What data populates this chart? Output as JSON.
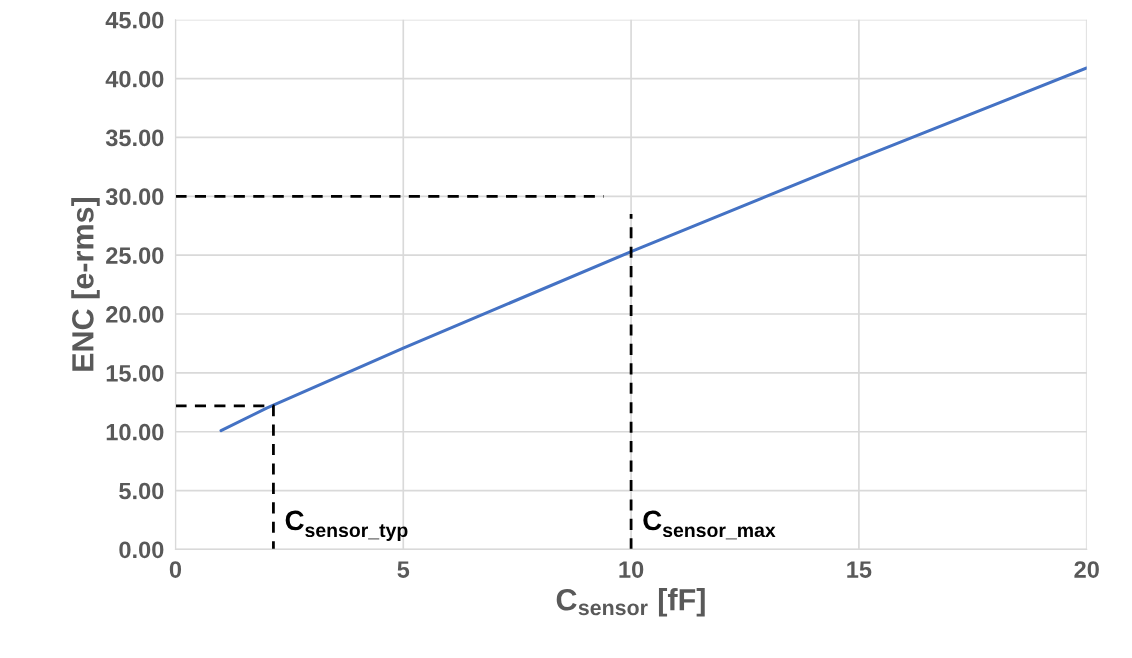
{
  "chart_data": {
    "type": "line",
    "xlabel": "C$_{sensor}$ [fF]",
    "ylabel": "ENC [e-rms]",
    "series": [
      {
        "color": "#4472c4",
        "x": [
          1,
          2,
          5,
          10,
          15,
          20
        ],
        "values": [
          10.1,
          12.0,
          17.1,
          25.3,
          33.2,
          40.9
        ],
        "line_style": "solid"
      },
      {
        "color": "#000000",
        "x": [
          0,
          9.4
        ],
        "values": [
          30,
          30
        ],
        "line_style": "dashed"
      },
      {
        "color": "#000000",
        "x": [
          10,
          10
        ],
        "values": [
          0,
          28.5
        ],
        "line_style": "dashed"
      },
      {
        "color": "#000000",
        "x": [
          0,
          2.15,
          2.15
        ],
        "values": [
          12.2,
          12.2,
          0
        ],
        "line_style": "dashed"
      }
    ],
    "annotations": [
      "C$_{sensor_typ}$",
      "C$_{sensor_max}$"
    ],
    "xlim": [
      0,
      20
    ],
    "xticks": [
      0,
      5,
      10,
      15,
      20
    ],
    "ylim": [
      0,
      45
    ],
    "yticks": [
      {
        "value": 0,
        "label": "0.00"
      },
      {
        "value": 5,
        "label": "5.00"
      },
      {
        "value": 10,
        "label": "10.00"
      },
      {
        "value": 15,
        "label": "15.00"
      },
      {
        "value": 20,
        "label": "20.00"
      },
      {
        "value": 25,
        "label": "25.00"
      },
      {
        "value": 30,
        "label": "30.00"
      },
      {
        "value": 35,
        "label": "35.00"
      },
      {
        "value": 40,
        "label": "40.00"
      },
      {
        "value": 45,
        "label": "45.00"
      }
    ],
    "grid": true,
    "marker": "none",
    "legend": false
  }
}
